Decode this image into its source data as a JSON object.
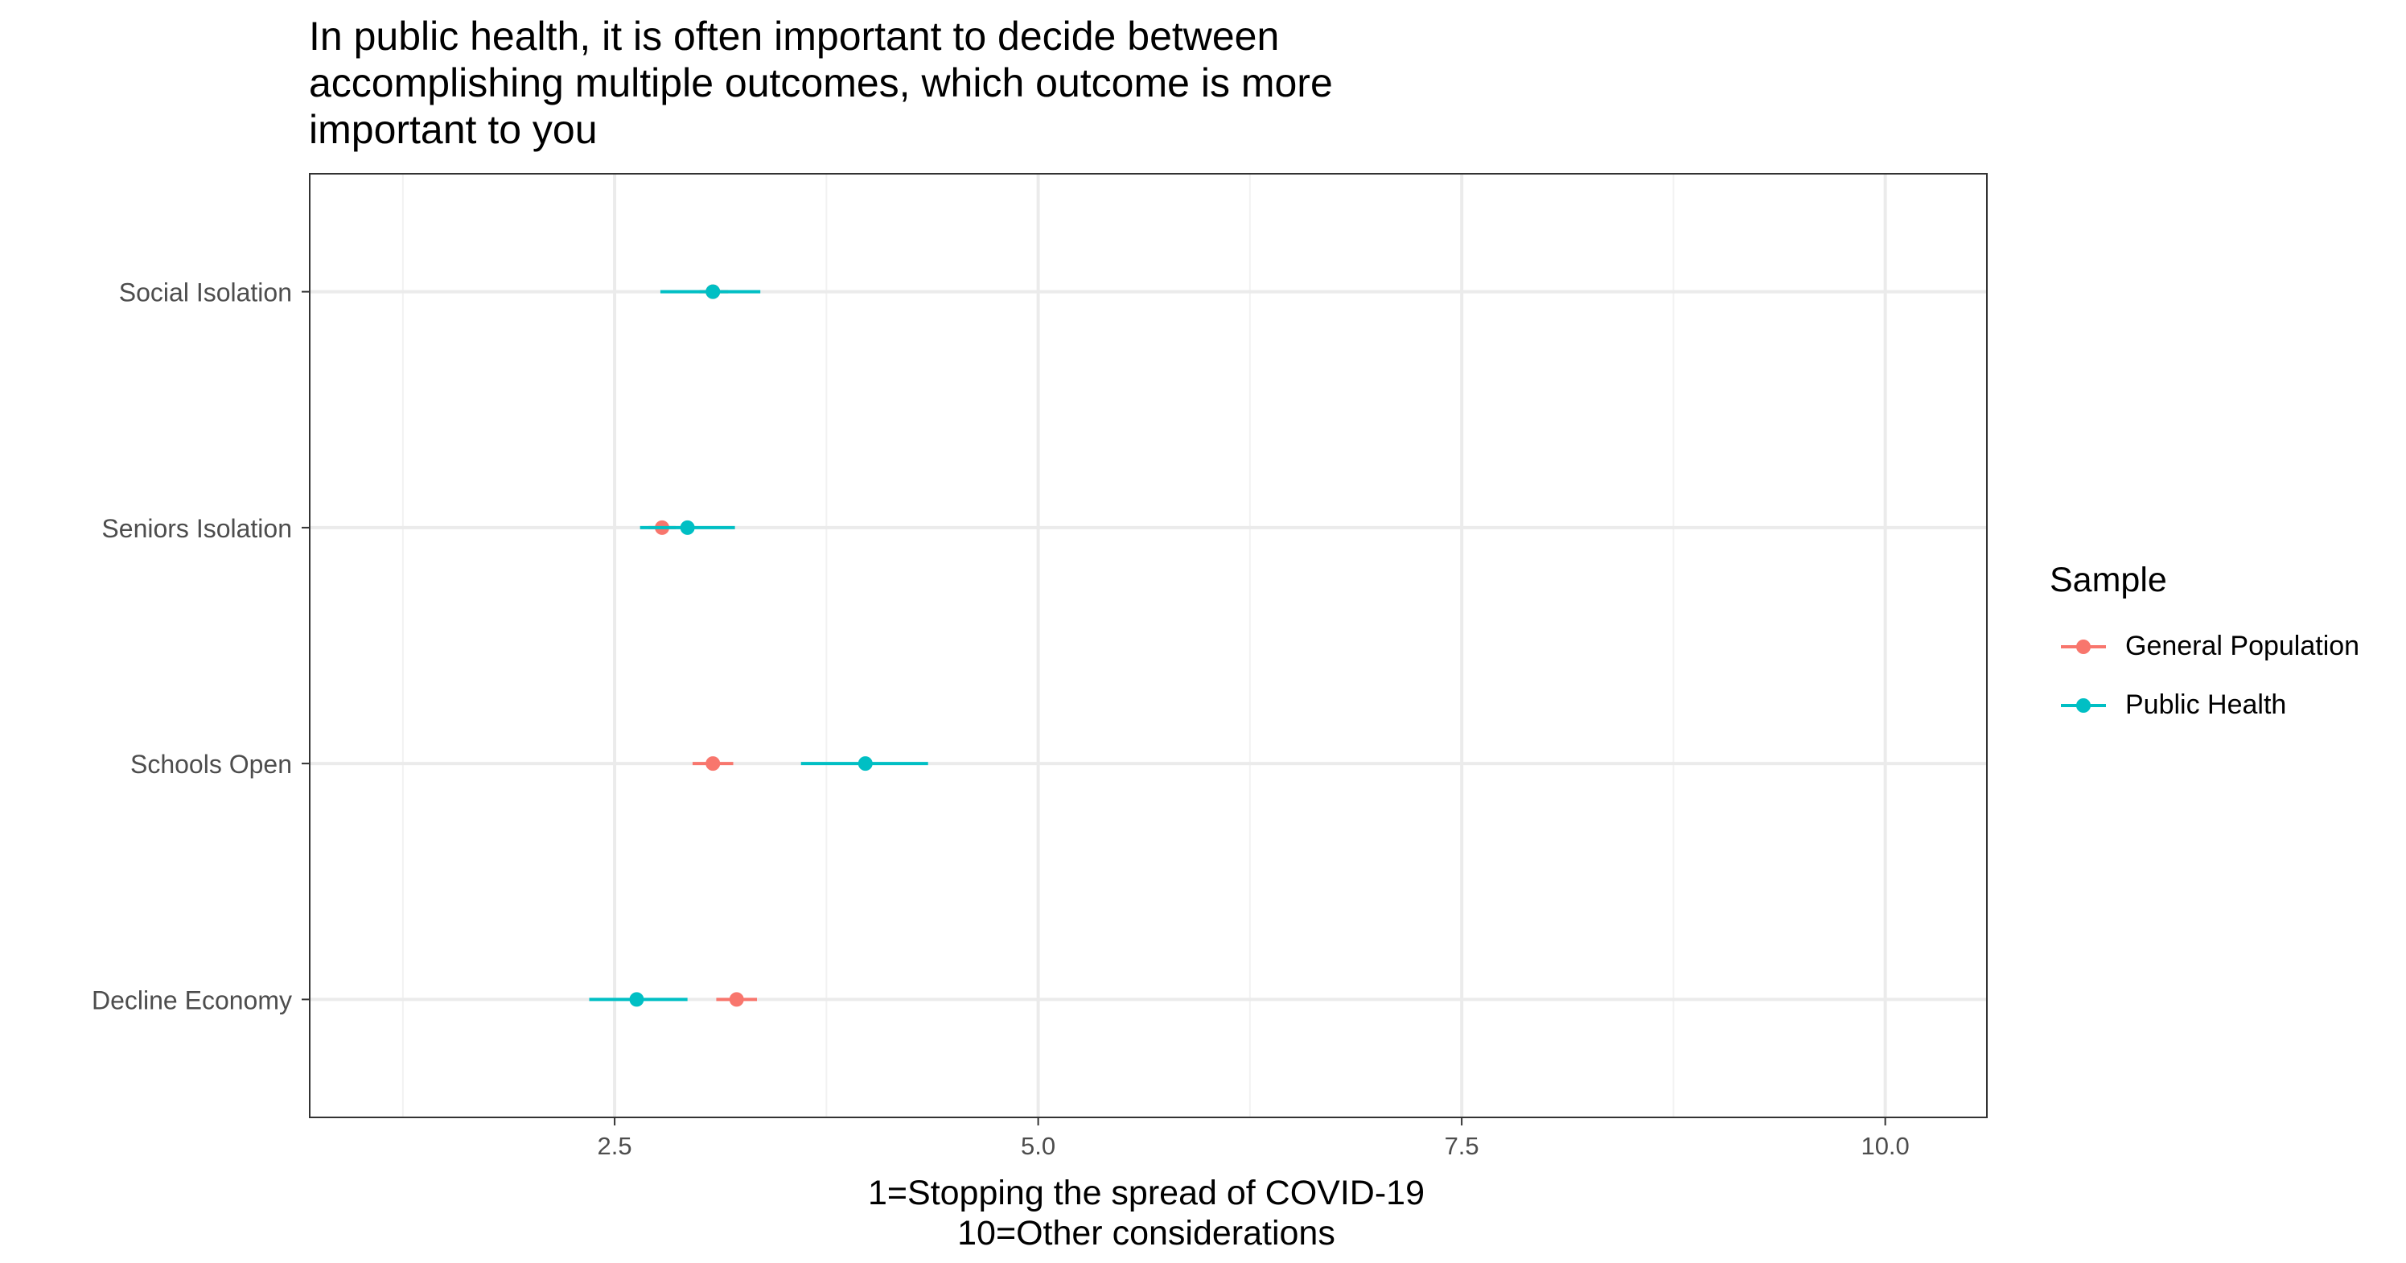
{
  "chart_data": {
    "type": "scatter",
    "title_lines": [
      "In public health, it is often important to decide between",
      "accomplishing multiple outcomes, which outcome is more",
      "important to you"
    ],
    "xlabel_lines": [
      "1=Stopping the spread of COVID-19",
      "10=Other considerations"
    ],
    "ylabel": "",
    "xlim": [
      0.7,
      10.6
    ],
    "x_ticks": [
      2.5,
      5.0,
      7.5,
      10.0
    ],
    "x_tick_labels": [
      "2.5",
      "5.0",
      "7.5",
      "10.0"
    ],
    "categories": [
      "Social Isolation",
      "Seniors Isolation",
      "Schools Open",
      "Decline Economy"
    ],
    "grid": true,
    "legend": {
      "title": "Sample",
      "position": "right",
      "entries": [
        "General Population",
        "Public Health"
      ]
    },
    "series": [
      {
        "name": "General Population",
        "color": "#f8766d",
        "points": [
          {
            "category": "Social Isolation",
            "x": 3.08,
            "lo": 3.0,
            "hi": 3.17
          },
          {
            "category": "Seniors Isolation",
            "x": 2.78,
            "lo": 2.7,
            "hi": 2.86
          },
          {
            "category": "Schools Open",
            "x": 3.08,
            "lo": 2.96,
            "hi": 3.2
          },
          {
            "category": "Decline Economy",
            "x": 3.22,
            "lo": 3.1,
            "hi": 3.34
          }
        ]
      },
      {
        "name": "Public Health",
        "color": "#00bfc4",
        "points": [
          {
            "category": "Social Isolation",
            "x": 3.08,
            "lo": 2.77,
            "hi": 3.36
          },
          {
            "category": "Seniors Isolation",
            "x": 2.93,
            "lo": 2.65,
            "hi": 3.21
          },
          {
            "category": "Schools Open",
            "x": 3.98,
            "lo": 3.6,
            "hi": 4.35
          },
          {
            "category": "Decline Economy",
            "x": 2.63,
            "lo": 2.35,
            "hi": 2.93
          }
        ]
      }
    ]
  }
}
